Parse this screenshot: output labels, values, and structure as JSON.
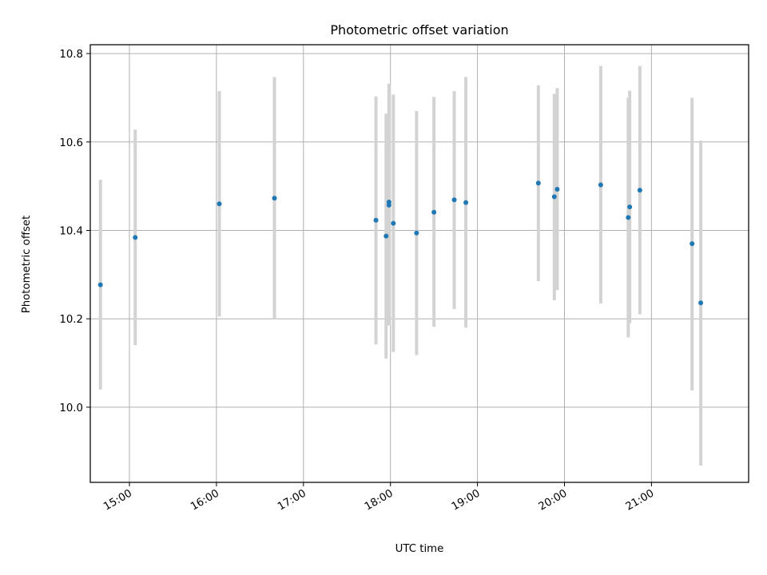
{
  "chart_data": {
    "type": "scatter",
    "title": "Photometric offset variation",
    "xlabel": "UTC time",
    "ylabel": "Photometric offset",
    "x_ticks": [
      "15:00",
      "16:00",
      "17:00",
      "18:00",
      "19:00",
      "20:00",
      "21:00"
    ],
    "y_ticks": [
      "10.0",
      "10.2",
      "10.4",
      "10.6",
      "10.8"
    ],
    "xlim": [
      "14:33",
      "22:07"
    ],
    "ylim": [
      9.83,
      10.82
    ],
    "grid": true,
    "marker_color": "#1f77b4",
    "errorbar_color": "#d3d3d3",
    "points": [
      {
        "time": "14:40",
        "value": 10.277,
        "low": 10.04,
        "high": 10.515
      },
      {
        "time": "15:04",
        "value": 10.384,
        "low": 10.14,
        "high": 10.628
      },
      {
        "time": "16:02",
        "value": 10.46,
        "low": 10.205,
        "high": 10.715
      },
      {
        "time": "16:40",
        "value": 10.473,
        "low": 10.2,
        "high": 10.747
      },
      {
        "time": "17:50",
        "value": 10.423,
        "low": 10.142,
        "high": 10.703
      },
      {
        "time": "17:57",
        "value": 10.387,
        "low": 10.11,
        "high": 10.664
      },
      {
        "time": "17:59",
        "value": 10.464,
        "low": 10.195,
        "high": 10.732
      },
      {
        "time": "17:59",
        "value": 10.457,
        "low": 10.185,
        "high": 10.728
      },
      {
        "time": "18:02",
        "value": 10.416,
        "low": 10.125,
        "high": 10.707
      },
      {
        "time": "18:18",
        "value": 10.394,
        "low": 10.118,
        "high": 10.67
      },
      {
        "time": "18:30",
        "value": 10.441,
        "low": 10.182,
        "high": 10.702
      },
      {
        "time": "18:44",
        "value": 10.469,
        "low": 10.222,
        "high": 10.715
      },
      {
        "time": "18:52",
        "value": 10.463,
        "low": 10.18,
        "high": 10.747
      },
      {
        "time": "19:42",
        "value": 10.507,
        "low": 10.285,
        "high": 10.728
      },
      {
        "time": "19:53",
        "value": 10.476,
        "low": 10.242,
        "high": 10.709
      },
      {
        "time": "19:55",
        "value": 10.493,
        "low": 10.265,
        "high": 10.722
      },
      {
        "time": "20:25",
        "value": 10.503,
        "low": 10.235,
        "high": 10.772
      },
      {
        "time": "20:44",
        "value": 10.429,
        "low": 10.158,
        "high": 10.7
      },
      {
        "time": "20:45",
        "value": 10.453,
        "low": 10.19,
        "high": 10.716
      },
      {
        "time": "20:52",
        "value": 10.491,
        "low": 10.21,
        "high": 10.772
      },
      {
        "time": "21:28",
        "value": 10.37,
        "low": 10.038,
        "high": 10.7
      },
      {
        "time": "21:34",
        "value": 10.236,
        "low": 9.868,
        "high": 10.603
      }
    ]
  }
}
